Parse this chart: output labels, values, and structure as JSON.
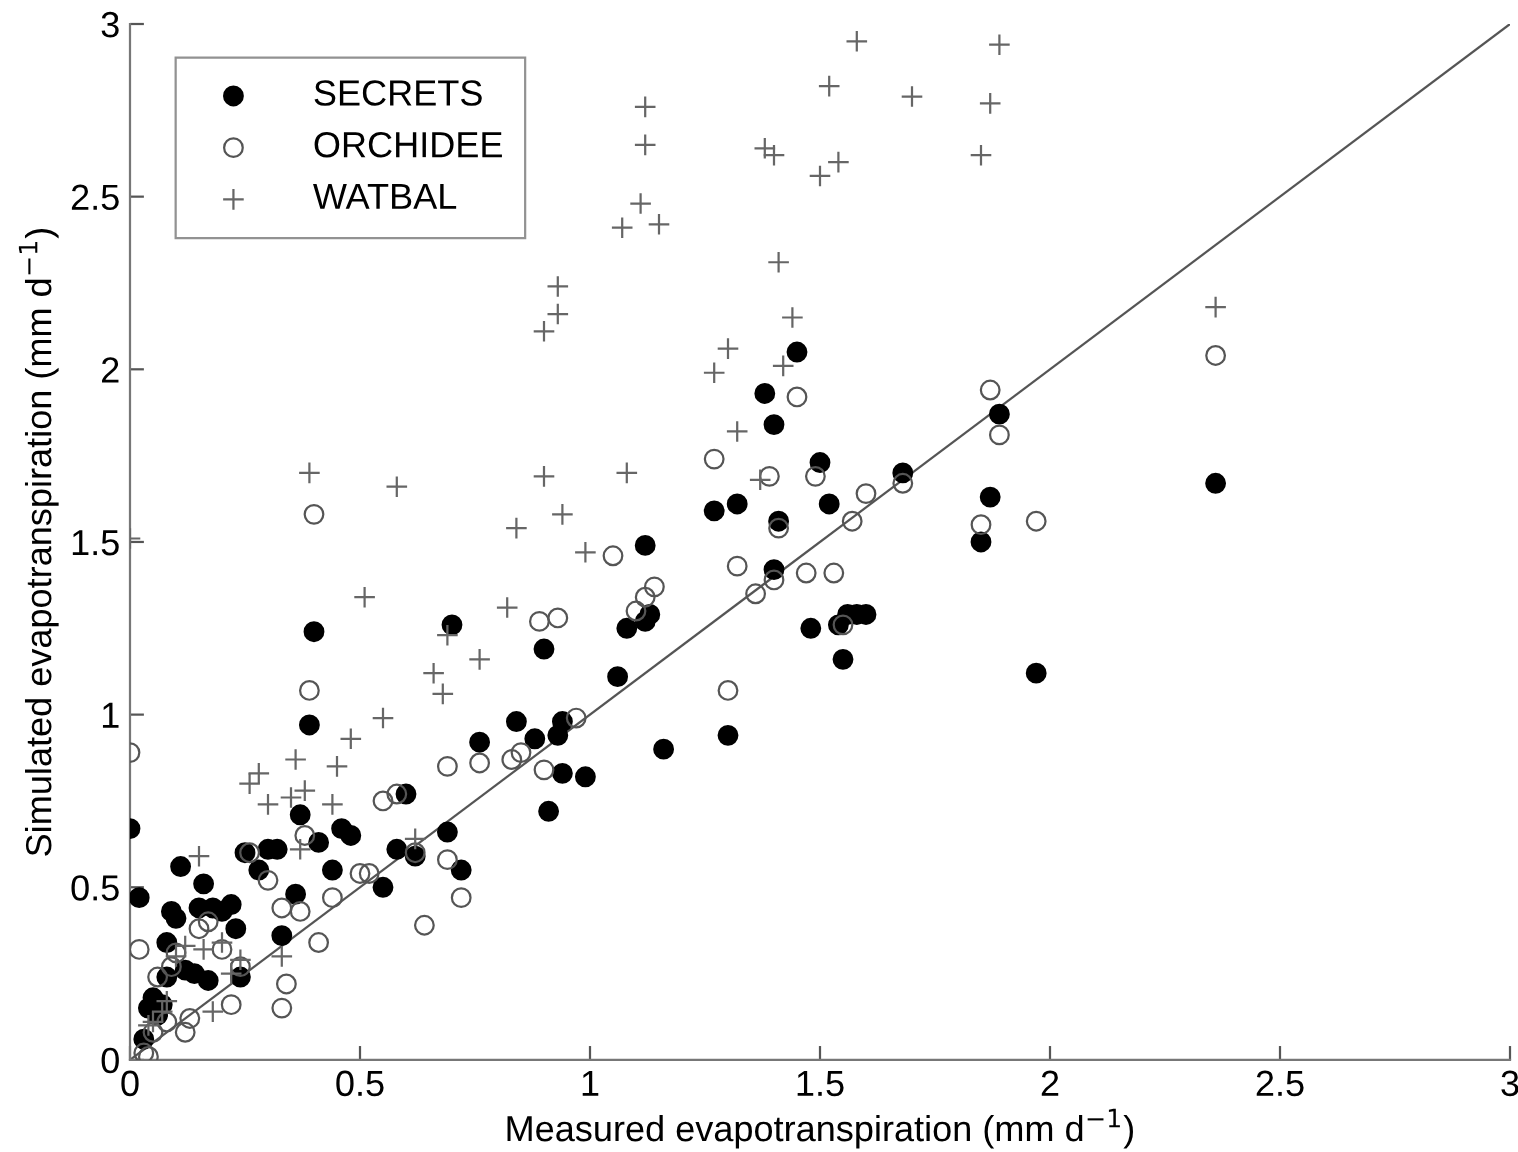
{
  "chart_data": {
    "type": "scatter",
    "xlabel": "Measured evapotranspiration (mm d$^{−1}$)",
    "ylabel": "Simulated evapotranspiration (mm d$^{−1}$)",
    "xlim": [
      0,
      3
    ],
    "ylim": [
      0,
      3
    ],
    "xticks": [
      0,
      0.5,
      1,
      1.5,
      2,
      2.5,
      3
    ],
    "yticks": [
      0,
      0.5,
      1,
      1.5,
      2,
      2.5,
      3
    ],
    "grid": false,
    "legend": "top left",
    "series": [
      {
        "name": "SECRETS",
        "color": "#000000",
        "marker": "circle",
        "x": [
          0,
          0.02,
          0.03,
          0.04,
          0.05,
          0.06,
          0.07,
          0.08,
          0.08,
          0.09,
          0.1,
          0.11,
          0.12,
          0.14,
          0.15,
          0.16,
          0.17,
          0.18,
          0.2,
          0.22,
          0.23,
          0.24,
          0.25,
          0.28,
          0.3,
          0.32,
          0.33,
          0.36,
          0.37,
          0.39,
          0.4,
          0.41,
          0.44,
          0.46,
          0.48,
          0.55,
          0.58,
          0.6,
          0.62,
          0.69,
          0.7,
          0.72,
          0.76,
          0.84,
          0.88,
          0.9,
          0.91,
          0.93,
          0.94,
          0.94,
          0.99,
          1.06,
          1.08,
          1.12,
          1.12,
          1.13,
          1.16,
          1.3,
          1.32,
          1.27,
          1.38,
          1.4,
          1.41,
          1.4,
          1.45,
          1.48,
          1.5,
          1.52,
          1.54,
          1.56,
          1.55,
          1.58,
          1.6,
          1.68,
          1.85,
          1.87,
          1.89,
          1.97,
          2.36
        ],
        "values": [
          0.67,
          0.47,
          0.06,
          0.15,
          0.18,
          0.13,
          0.16,
          0.34,
          0.24,
          0.43,
          0.41,
          0.56,
          0.26,
          0.25,
          0.44,
          0.51,
          0.23,
          0.44,
          0.43,
          0.45,
          0.38,
          0.24,
          0.6,
          0.55,
          0.61,
          0.61,
          0.36,
          0.48,
          0.71,
          0.97,
          1.24,
          0.63,
          0.55,
          0.67,
          0.65,
          0.5,
          0.61,
          0.77,
          0.59,
          0.66,
          1.26,
          0.55,
          0.92,
          0.98,
          0.93,
          1.19,
          0.72,
          0.94,
          0.98,
          0.83,
          0.82,
          1.11,
          1.25,
          1.27,
          1.49,
          1.29,
          0.9,
          0.94,
          1.61,
          1.59,
          1.93,
          1.84,
          1.56,
          1.42,
          2.05,
          1.25,
          1.73,
          1.61,
          1.26,
          1.29,
          1.16,
          1.29,
          1.29,
          1.7,
          1.5,
          1.63,
          1.87,
          1.12,
          1.67
        ]
      },
      {
        "name": "ORCHIDEE",
        "color": "#555555",
        "marker": "circle",
        "x": [
          0,
          0.02,
          0.03,
          0.04,
          0.05,
          0.06,
          0.08,
          0.09,
          0.1,
          0.12,
          0.13,
          0.15,
          0.17,
          0.2,
          0.22,
          0.24,
          0.26,
          0.3,
          0.33,
          0.33,
          0.34,
          0.37,
          0.38,
          0.39,
          0.4,
          0.41,
          0.44,
          0.5,
          0.52,
          0.55,
          0.58,
          0.62,
          0.64,
          0.69,
          0.69,
          0.72,
          0.76,
          0.83,
          0.85,
          0.89,
          0.9,
          0.93,
          0.97,
          1.05,
          1.1,
          1.14,
          1.12,
          1.27,
          1.3,
          1.32,
          1.36,
          1.39,
          1.4,
          1.41,
          1.45,
          1.47,
          1.49,
          1.53,
          1.55,
          1.57,
          1.6,
          1.68,
          1.85,
          1.87,
          1.89,
          1.97,
          2.36
        ],
        "values": [
          0.89,
          0.32,
          0.02,
          0.01,
          0.08,
          0.24,
          0.11,
          0.27,
          0.31,
          0.08,
          0.12,
          0.38,
          0.4,
          0.32,
          0.16,
          0.27,
          0.6,
          0.52,
          0.15,
          0.44,
          0.22,
          0.43,
          0.65,
          1.07,
          1.58,
          0.34,
          0.47,
          0.54,
          0.54,
          0.75,
          0.77,
          0.6,
          0.39,
          0.85,
          0.58,
          0.47,
          0.86,
          0.87,
          0.89,
          1.27,
          0.84,
          1.28,
          0.99,
          1.46,
          1.3,
          1.37,
          1.34,
          1.74,
          1.07,
          1.43,
          1.35,
          1.69,
          1.39,
          1.54,
          1.92,
          1.41,
          1.69,
          1.41,
          1.26,
          1.56,
          1.64,
          1.67,
          1.55,
          1.94,
          1.81,
          1.56,
          2.04
        ]
      },
      {
        "name": "WATBAL",
        "color": "#666666",
        "marker": "cross",
        "x": [
          0,
          0.04,
          0.05,
          0.07,
          0.08,
          0.1,
          0.12,
          0.15,
          0.16,
          0.18,
          0.2,
          0.22,
          0.24,
          0.26,
          0.28,
          0.3,
          0.33,
          0.35,
          0.36,
          0.37,
          0.38,
          0.39,
          0.44,
          0.45,
          0.48,
          0.51,
          0.55,
          0.58,
          0.62,
          0.66,
          0.68,
          0.69,
          0.76,
          0.82,
          0.84,
          0.9,
          0.9,
          0.93,
          0.93,
          0.94,
          0.99,
          1.07,
          1.08,
          1.11,
          1.12,
          1.12,
          1.15,
          1.27,
          1.3,
          1.32,
          1.37,
          1.38,
          1.4,
          1.41,
          1.42,
          1.44,
          1.5,
          1.52,
          1.54,
          1.58,
          1.7,
          1.85,
          1.87,
          1.89,
          2.36
        ],
        "values": [
          1.51,
          0.1,
          0.11,
          0.14,
          0.17,
          0.3,
          0.33,
          0.59,
          0.32,
          0.14,
          0.34,
          0.25,
          0.29,
          0.8,
          0.83,
          0.74,
          0.3,
          0.76,
          0.87,
          0.61,
          0.78,
          1.7,
          0.74,
          0.85,
          0.93,
          1.34,
          0.99,
          1.66,
          0.64,
          1.12,
          1.06,
          1.23,
          1.16,
          1.31,
          1.54,
          2.11,
          1.69,
          2.24,
          2.16,
          1.58,
          1.47,
          2.41,
          1.7,
          2.48,
          2.76,
          2.65,
          2.42,
          1.99,
          2.06,
          1.82,
          1.68,
          2.64,
          2.62,
          2.31,
          2.01,
          2.15,
          2.56,
          2.82,
          2.6,
          2.95,
          2.79,
          2.62,
          2.77,
          2.94,
          2.18
        ]
      },
      {
        "type": "line",
        "color": "#555555",
        "marker": "none",
        "line_style": "solid",
        "x": [
          0,
          3
        ],
        "values": [
          0,
          3
        ]
      }
    ]
  }
}
